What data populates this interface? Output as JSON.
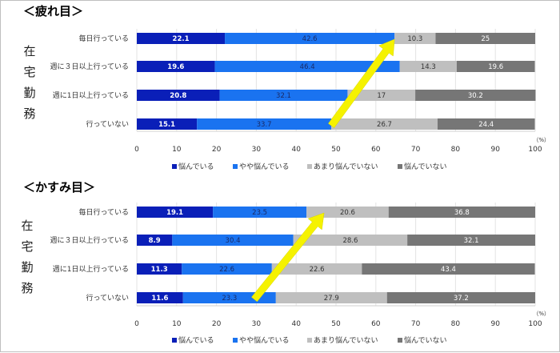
{
  "side_label": [
    "在",
    "宅",
    "勤",
    "務"
  ],
  "legend": [
    {
      "name": "悩んでいる",
      "color": "#0a1fb8"
    },
    {
      "name": "やや悩んでいる",
      "color": "#1a73f0"
    },
    {
      "name": "あまり悩んでいない",
      "color": "#bfbfbf"
    },
    {
      "name": "悩んでいない",
      "color": "#767676"
    }
  ],
  "label_colors": [
    "#ffffff",
    "#1a2a66",
    "#333333",
    "#ffffff"
  ],
  "arrow_color": "#f5f200",
  "unit": "（%）",
  "chart_data": [
    {
      "type": "bar",
      "orientation": "horizontal",
      "stacked": true,
      "title": "＜疲れ目＞",
      "categories": [
        "毎日行っている",
        "週に３日以上行っている",
        "週に1日以上行っている",
        "行っていない"
      ],
      "series": [
        {
          "name": "悩んでいる",
          "values": [
            22.1,
            19.6,
            20.8,
            15.1
          ]
        },
        {
          "name": "やや悩んでいる",
          "values": [
            42.6,
            46.4,
            32.1,
            33.7
          ]
        },
        {
          "name": "あまり悩んでいない",
          "values": [
            10.3,
            14.3,
            17,
            26.7
          ]
        },
        {
          "name": "悩んでいない",
          "values": [
            25,
            19.6,
            30.2,
            24.4
          ]
        }
      ],
      "xlim": [
        0,
        100
      ],
      "xticks": [
        0,
        10,
        20,
        30,
        40,
        50,
        60,
        70,
        80,
        90,
        100
      ],
      "annotation": {
        "type": "arrow",
        "from": {
          "category": "行っていない",
          "x": 48.8
        },
        "to": {
          "category": "毎日行っている",
          "x": 64.7
        }
      }
    },
    {
      "type": "bar",
      "orientation": "horizontal",
      "stacked": true,
      "title": "＜かすみ目＞",
      "categories": [
        "毎日行っている",
        "週に３日以上行っている",
        "週に1日以上行っている",
        "行っていない"
      ],
      "series": [
        {
          "name": "悩んでいる",
          "values": [
            19.1,
            8.9,
            11.3,
            11.6
          ]
        },
        {
          "name": "やや悩んでいる",
          "values": [
            23.5,
            30.4,
            22.6,
            23.3
          ]
        },
        {
          "name": "あまり悩んでいない",
          "values": [
            20.6,
            28.6,
            22.6,
            27.9
          ]
        },
        {
          "name": "悩んでいない",
          "values": [
            36.8,
            32.1,
            43.4,
            37.2
          ]
        }
      ],
      "xlim": [
        0,
        100
      ],
      "xticks": [
        0,
        10,
        20,
        30,
        40,
        50,
        60,
        70,
        80,
        90,
        100
      ],
      "annotation": {
        "type": "arrow",
        "from": {
          "category": "行っていない",
          "x": 29.5
        },
        "to": {
          "category": "毎日行っている",
          "x": 47
        }
      }
    }
  ]
}
